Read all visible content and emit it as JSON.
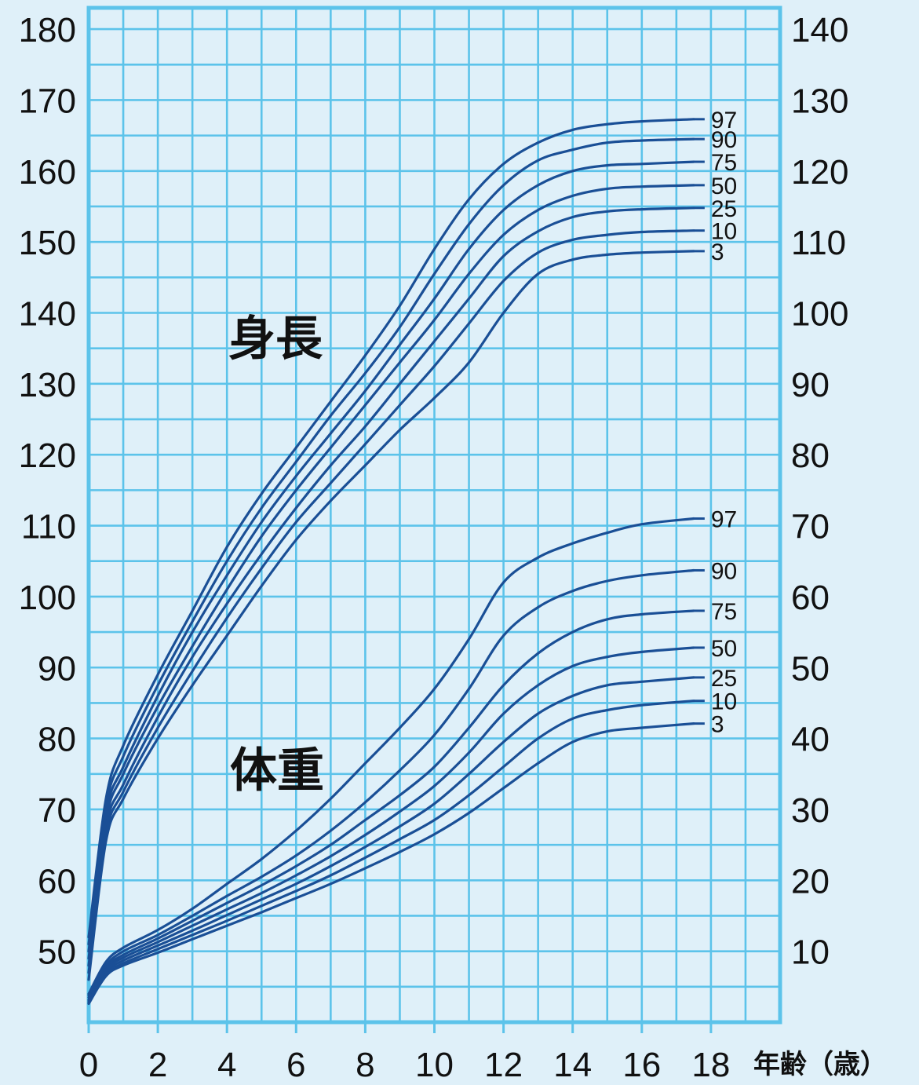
{
  "chart_data": {
    "type": "line",
    "colors": {
      "background": "#dff0f9",
      "grid": "#5cc3ea",
      "curve": "#1a4f96"
    },
    "x": {
      "label": "年齢（歳）",
      "range": [
        0,
        20
      ],
      "ticks": [
        "0",
        "2",
        "4",
        "6",
        "8",
        "10",
        "12",
        "14",
        "16",
        "18"
      ]
    },
    "y_left": {
      "range": [
        40,
        183
      ],
      "ticks": [
        50,
        60,
        70,
        80,
        90,
        100,
        110,
        120,
        130,
        140,
        150,
        160,
        170,
        180
      ]
    },
    "y_right": {
      "range": [
        0,
        143
      ],
      "ticks": [
        10,
        20,
        30,
        40,
        50,
        60,
        70,
        80,
        90,
        100,
        110,
        120,
        130,
        140
      ]
    },
    "grid": true,
    "height": {
      "title": "身長",
      "axis": "left",
      "series": [
        {
          "name": "97",
          "points": [
            [
              0,
              52
            ],
            [
              0.5,
              71.5
            ],
            [
              1,
              79
            ],
            [
              2,
              89
            ],
            [
              3,
              98
            ],
            [
              4,
              107
            ],
            [
              5,
              114.5
            ],
            [
              6,
              121
            ],
            [
              7,
              127.5
            ],
            [
              8,
              134
            ],
            [
              9,
              141
            ],
            [
              10,
              149
            ],
            [
              11,
              156
            ],
            [
              12,
              161
            ],
            [
              13,
              164
            ],
            [
              14,
              165.8
            ],
            [
              15,
              166.6
            ],
            [
              16,
              167
            ],
            [
              17.5,
              167.3
            ]
          ]
        },
        {
          "name": "90",
          "points": [
            [
              0,
              51
            ],
            [
              0.5,
              70.5
            ],
            [
              1,
              77.5
            ],
            [
              2,
              87.5
            ],
            [
              3,
              96.5
            ],
            [
              4,
              105
            ],
            [
              5,
              112.5
            ],
            [
              6,
              119
            ],
            [
              7,
              125.5
            ],
            [
              8,
              131.5
            ],
            [
              9,
              138
            ],
            [
              10,
              145.5
            ],
            [
              11,
              152.5
            ],
            [
              12,
              158
            ],
            [
              13,
              161.5
            ],
            [
              14,
              163
            ],
            [
              15,
              164
            ],
            [
              16,
              164.3
            ],
            [
              17.5,
              164.5
            ]
          ]
        },
        {
          "name": "75",
          "points": [
            [
              0,
              50
            ],
            [
              0.5,
              69.5
            ],
            [
              1,
              76
            ],
            [
              2,
              86
            ],
            [
              3,
              95
            ],
            [
              4,
              103
            ],
            [
              5,
              110.5
            ],
            [
              6,
              117
            ],
            [
              7,
              123
            ],
            [
              8,
              129
            ],
            [
              9,
              135.5
            ],
            [
              10,
              142
            ],
            [
              11,
              149
            ],
            [
              12,
              154.5
            ],
            [
              13,
              158
            ],
            [
              14,
              160
            ],
            [
              15,
              160.8
            ],
            [
              16,
              161
            ],
            [
              17.5,
              161.3
            ]
          ]
        },
        {
          "name": "50",
          "points": [
            [
              0,
              49
            ],
            [
              0.5,
              68.5
            ],
            [
              1,
              75
            ],
            [
              2,
              84.5
            ],
            [
              3,
              93
            ],
            [
              4,
              101
            ],
            [
              5,
              108.5
            ],
            [
              6,
              115
            ],
            [
              7,
              121
            ],
            [
              8,
              127
            ],
            [
              9,
              133
            ],
            [
              10,
              139
            ],
            [
              11,
              145.5
            ],
            [
              12,
              151
            ],
            [
              13,
              154.5
            ],
            [
              14,
              156.5
            ],
            [
              15,
              157.5
            ],
            [
              16,
              157.8
            ],
            [
              17.5,
              158
            ]
          ]
        },
        {
          "name": "25",
          "points": [
            [
              0,
              48
            ],
            [
              0.5,
              67.5
            ],
            [
              1,
              73.5
            ],
            [
              2,
              83
            ],
            [
              3,
              91.5
            ],
            [
              4,
              99
            ],
            [
              5,
              106
            ],
            [
              6,
              112.5
            ],
            [
              7,
              118.5
            ],
            [
              8,
              124
            ],
            [
              9,
              130
            ],
            [
              10,
              136
            ],
            [
              11,
              142
            ],
            [
              12,
              148
            ],
            [
              13,
              151.5
            ],
            [
              14,
              153.5
            ],
            [
              15,
              154.3
            ],
            [
              16,
              154.6
            ],
            [
              17.5,
              154.8
            ]
          ]
        },
        {
          "name": "10",
          "points": [
            [
              0,
              47
            ],
            [
              0.5,
              66.5
            ],
            [
              1,
              72.5
            ],
            [
              2,
              81.5
            ],
            [
              3,
              89.5
            ],
            [
              4,
              97
            ],
            [
              5,
              104
            ],
            [
              6,
              110.5
            ],
            [
              7,
              116
            ],
            [
              8,
              121.5
            ],
            [
              9,
              127
            ],
            [
              10,
              132.5
            ],
            [
              11,
              138.5
            ],
            [
              12,
              144.5
            ],
            [
              13,
              148.5
            ],
            [
              14,
              150.3
            ],
            [
              15,
              151
            ],
            [
              16,
              151.4
            ],
            [
              17.5,
              151.6
            ]
          ]
        },
        {
          "name": "3",
          "points": [
            [
              0,
              46
            ],
            [
              0.5,
              65.5
            ],
            [
              1,
              71.5
            ],
            [
              2,
              80
            ],
            [
              3,
              87.5
            ],
            [
              4,
              94.5
            ],
            [
              5,
              101.5
            ],
            [
              6,
              108
            ],
            [
              7,
              113.5
            ],
            [
              8,
              118.5
            ],
            [
              9,
              123.5
            ],
            [
              10,
              128
            ],
            [
              11,
              133
            ],
            [
              12,
              140
            ],
            [
              13,
              145.5
            ],
            [
              14,
              147.5
            ],
            [
              15,
              148.2
            ],
            [
              16,
              148.5
            ],
            [
              17.5,
              148.7
            ]
          ]
        }
      ]
    },
    "weight": {
      "title": "体重",
      "axis": "right",
      "series": [
        {
          "name": "97",
          "points": [
            [
              0,
              4
            ],
            [
              0.5,
              8.5
            ],
            [
              1,
              10.5
            ],
            [
              2,
              13
            ],
            [
              3,
              16
            ],
            [
              4,
              19.5
            ],
            [
              5,
              23
            ],
            [
              6,
              27
            ],
            [
              7,
              31.5
            ],
            [
              8,
              36.5
            ],
            [
              9,
              41.5
            ],
            [
              10,
              47
            ],
            [
              11,
              54
            ],
            [
              12,
              62
            ],
            [
              13,
              65.5
            ],
            [
              14,
              67.5
            ],
            [
              15,
              69
            ],
            [
              16,
              70.2
            ],
            [
              17.5,
              71
            ]
          ]
        },
        {
          "name": "90",
          "points": [
            [
              0,
              3.8
            ],
            [
              0.5,
              8
            ],
            [
              1,
              10
            ],
            [
              2,
              12.3
            ],
            [
              3,
              15
            ],
            [
              4,
              17.8
            ],
            [
              5,
              20.5
            ],
            [
              6,
              23.5
            ],
            [
              7,
              27
            ],
            [
              8,
              31
            ],
            [
              9,
              35.5
            ],
            [
              10,
              40.5
            ],
            [
              11,
              47
            ],
            [
              12,
              54.5
            ],
            [
              13,
              58.5
            ],
            [
              14,
              60.8
            ],
            [
              15,
              62.2
            ],
            [
              16,
              63
            ],
            [
              17.5,
              63.7
            ]
          ]
        },
        {
          "name": "75",
          "points": [
            [
              0,
              3.5
            ],
            [
              0.5,
              7.7
            ],
            [
              1,
              9.5
            ],
            [
              2,
              11.8
            ],
            [
              3,
              14.3
            ],
            [
              4,
              16.8
            ],
            [
              5,
              19.3
            ],
            [
              6,
              22
            ],
            [
              7,
              25
            ],
            [
              8,
              28.5
            ],
            [
              9,
              32
            ],
            [
              10,
              36
            ],
            [
              11,
              41.5
            ],
            [
              12,
              47.5
            ],
            [
              13,
              52
            ],
            [
              14,
              55
            ],
            [
              15,
              56.8
            ],
            [
              16,
              57.5
            ],
            [
              17.5,
              58
            ]
          ]
        },
        {
          "name": "50",
          "points": [
            [
              0,
              3.2
            ],
            [
              0.5,
              7.4
            ],
            [
              1,
              9.1
            ],
            [
              2,
              11.3
            ],
            [
              3,
              13.6
            ],
            [
              4,
              15.9
            ],
            [
              5,
              18.2
            ],
            [
              6,
              20.7
            ],
            [
              7,
              23.4
            ],
            [
              8,
              26.4
            ],
            [
              9,
              29.7
            ],
            [
              10,
              33.3
            ],
            [
              11,
              38
            ],
            [
              12,
              43.5
            ],
            [
              13,
              47.5
            ],
            [
              14,
              50.2
            ],
            [
              15,
              51.5
            ],
            [
              16,
              52.2
            ],
            [
              17.5,
              52.8
            ]
          ]
        },
        {
          "name": "25",
          "points": [
            [
              0,
              3
            ],
            [
              0.5,
              7.1
            ],
            [
              1,
              8.7
            ],
            [
              2,
              10.8
            ],
            [
              3,
              12.9
            ],
            [
              4,
              15.1
            ],
            [
              5,
              17.3
            ],
            [
              6,
              19.5
            ],
            [
              7,
              22
            ],
            [
              8,
              24.7
            ],
            [
              9,
              27.6
            ],
            [
              10,
              30.8
            ],
            [
              11,
              35
            ],
            [
              12,
              39.5
            ],
            [
              13,
              43.5
            ],
            [
              14,
              46
            ],
            [
              15,
              47.5
            ],
            [
              16,
              48
            ],
            [
              17.5,
              48.6
            ]
          ]
        },
        {
          "name": "10",
          "points": [
            [
              0,
              2.8
            ],
            [
              0.5,
              6.8
            ],
            [
              1,
              8.3
            ],
            [
              2,
              10.3
            ],
            [
              3,
              12.3
            ],
            [
              4,
              14.3
            ],
            [
              5,
              16.4
            ],
            [
              6,
              18.5
            ],
            [
              7,
              20.7
            ],
            [
              8,
              23.2
            ],
            [
              9,
              25.8
            ],
            [
              10,
              28.5
            ],
            [
              11,
              32
            ],
            [
              12,
              36
            ],
            [
              13,
              40
            ],
            [
              14,
              42.8
            ],
            [
              15,
              44
            ],
            [
              16,
              44.7
            ],
            [
              17.5,
              45.3
            ]
          ]
        },
        {
          "name": "3",
          "points": [
            [
              0,
              2.6
            ],
            [
              0.5,
              6.5
            ],
            [
              1,
              8
            ],
            [
              2,
              9.8
            ],
            [
              3,
              11.7
            ],
            [
              4,
              13.6
            ],
            [
              5,
              15.5
            ],
            [
              6,
              17.5
            ],
            [
              7,
              19.5
            ],
            [
              8,
              21.7
            ],
            [
              9,
              24
            ],
            [
              10,
              26.5
            ],
            [
              11,
              29.5
            ],
            [
              12,
              33
            ],
            [
              13,
              36.5
            ],
            [
              14,
              39.5
            ],
            [
              15,
              41
            ],
            [
              16,
              41.5
            ],
            [
              17.5,
              42.1
            ]
          ]
        }
      ]
    }
  }
}
